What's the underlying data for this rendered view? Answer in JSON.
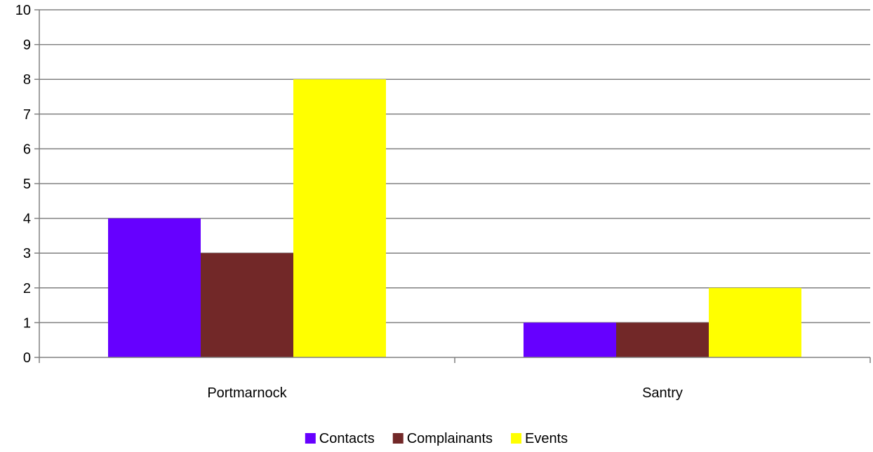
{
  "chart_data": {
    "type": "bar",
    "categories": [
      "Portmarnock",
      "Santry"
    ],
    "series": [
      {
        "name": "Contacts",
        "color": "#6600FF",
        "values": [
          4,
          1
        ]
      },
      {
        "name": "Complainants",
        "color": "#722828",
        "values": [
          3,
          1
        ]
      },
      {
        "name": "Events",
        "color": "#FFFF00",
        "values": [
          8,
          2
        ]
      }
    ],
    "ylim": [
      0,
      10
    ],
    "yticks": [
      "0",
      "1",
      "2",
      "3",
      "4",
      "5",
      "6",
      "7",
      "8",
      "9",
      "10"
    ],
    "grid": true,
    "legend_position": "bottom",
    "colors": {
      "gridline": "#808080",
      "axis": "#808080"
    }
  }
}
